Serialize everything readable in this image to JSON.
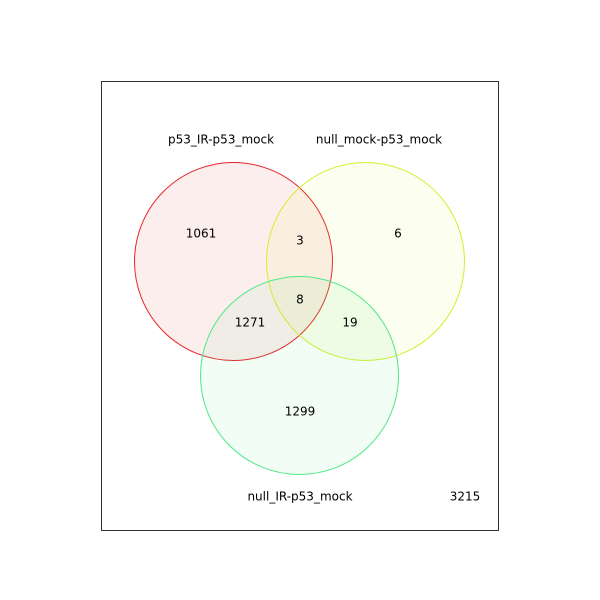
{
  "chart_data": {
    "type": "venn",
    "sets": [
      {
        "label": "p53_IR-p53_mock",
        "stroke": "#e8242b",
        "fill": "#fdeaea"
      },
      {
        "label": "null_mock-p53_mock",
        "stroke": "#d8ec30",
        "fill": "#fdfff0"
      },
      {
        "label": "null_IR-p53_mock",
        "stroke": "#4ee884",
        "fill": "#eefdf2"
      }
    ],
    "regions": {
      "only_1": "1061",
      "only_2": "6",
      "only_3": "1299",
      "1_2": "3",
      "1_3": "1271",
      "2_3": "19",
      "1_2_3": "8"
    },
    "outside": "3215"
  }
}
